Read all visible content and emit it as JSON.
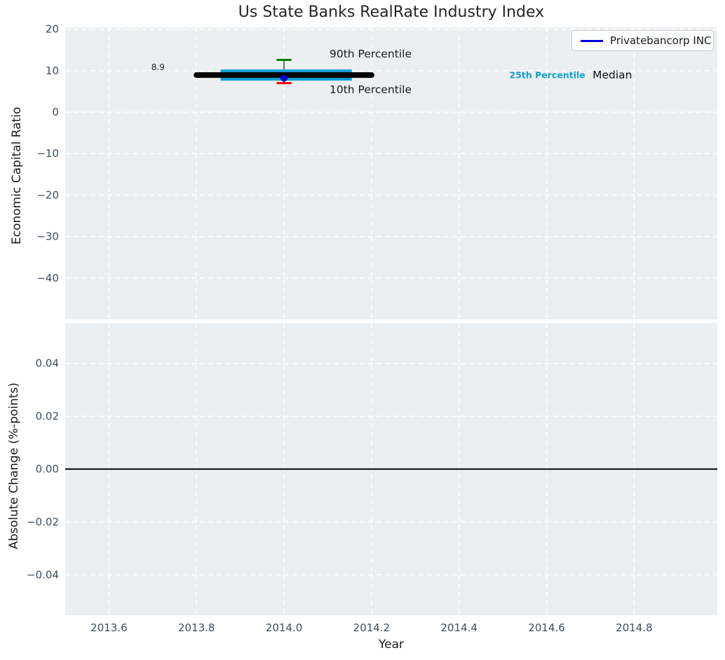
{
  "figure": {
    "title": "Us State Banks RealRate Industry Index",
    "legend": {
      "label": "Privatebancorp INC",
      "line_color": "#0000dd"
    }
  },
  "chart_data": [
    {
      "type": "line",
      "title": "Us State Banks RealRate Industry Index",
      "xlabel": "",
      "ylabel": "Economic Capital Ratio",
      "background": "#eceff1",
      "grid": "white-dashed",
      "xlim": [
        2013.5,
        2014.99
      ],
      "ylim": [
        -50,
        20.45
      ],
      "xticks": [
        2013.6,
        2013.8,
        2014.0,
        2014.2,
        2014.4,
        2014.6,
        2014.8
      ],
      "xtick_labels": [
        "2013.6",
        "2013.8",
        "2014.0",
        "2014.2",
        "2014.4",
        "2014.6",
        "2014.8"
      ],
      "yticks": [
        20,
        10,
        0,
        -10,
        -20,
        -30,
        -40
      ],
      "ytick_labels": [
        "20",
        "10",
        "0",
        "−10",
        "−20",
        "−30",
        "−40"
      ],
      "legend_position": "upper right",
      "series": [
        {
          "name": "whisker-stem",
          "type": "stem",
          "x": 2014.0,
          "y1": 7.0,
          "y2": 12.6,
          "color": "#4a4a4a",
          "linewidth": 1.5
        },
        {
          "name": "25th-75th percentile band",
          "type": "band",
          "x": [
            2013.855,
            2014.155
          ],
          "y_low": 7.6,
          "y_high": 10.3,
          "color": "#0f9fd4"
        },
        {
          "name": "Median",
          "type": "line",
          "x": [
            2013.8,
            2014.2
          ],
          "y": [
            8.95,
            8.95
          ],
          "color": "#000000",
          "linewidth": 8
        },
        {
          "name": "90th Percentile",
          "type": "whisker_cap",
          "x": 2014.0,
          "y": 12.6,
          "cap_halfwidth_years": 0.017,
          "color": "#008000",
          "linewidth": 3
        },
        {
          "name": "10th Percentile",
          "type": "whisker_cap",
          "x": 2014.0,
          "y": 7.0,
          "cap_halfwidth_years": 0.017,
          "color": "#f00000",
          "linewidth": 3
        },
        {
          "name": "Privatebancorp INC",
          "type": "scatter",
          "x": [
            2014.0
          ],
          "y": [
            8.2
          ],
          "color": "#0000cc",
          "marker": "circle",
          "marker_radius": 5
        }
      ],
      "annotations": [
        {
          "id": "value-label",
          "text": "8.9",
          "x": 2013.712,
          "y": 10.8,
          "color": "#262626",
          "font_size": 12,
          "anchor": "middle",
          "bold": false
        },
        {
          "id": "p90-label",
          "text": "90th Percentile",
          "x": 2014.104,
          "y": 14.0,
          "color": "#1a1a1a",
          "font_size": 15.5,
          "anchor": "start",
          "bold": false
        },
        {
          "id": "p10-label",
          "text": "10th Percentile",
          "x": 2014.104,
          "y": 5.4,
          "color": "#1a1a1a",
          "font_size": 15.5,
          "anchor": "start",
          "bold": false
        },
        {
          "id": "p25-label",
          "text": "25th Percentile",
          "x": 2014.515,
          "y": 9.0,
          "color": "#0f9fd4",
          "font_size": 12.5,
          "anchor": "start",
          "bold": true
        },
        {
          "id": "median-label",
          "text": "Median",
          "x": 2014.705,
          "y": 8.95,
          "color": "#111111",
          "font_size": 15.5,
          "anchor": "start",
          "bold": false
        }
      ]
    },
    {
      "type": "line",
      "xlabel": "Year",
      "ylabel": "Absolute Change (%-points)",
      "background": "#eceff1",
      "grid": "white-dashed",
      "xlim": [
        2013.5,
        2014.99
      ],
      "ylim": [
        -0.0553,
        0.0553
      ],
      "xticks": [
        2013.6,
        2013.8,
        2014.0,
        2014.2,
        2014.4,
        2014.6,
        2014.8
      ],
      "xtick_labels": [
        "2013.6",
        "2013.8",
        "2014.0",
        "2014.2",
        "2014.4",
        "2014.6",
        "2014.8"
      ],
      "yticks": [
        0.04,
        0.02,
        0.0,
        -0.02,
        -0.04
      ],
      "ytick_labels": [
        "0.04",
        "0.02",
        "0.00",
        "−0.02",
        "−0.04"
      ],
      "zero_line": {
        "y": 0.0,
        "color": "#000000",
        "linewidth": 2
      },
      "series": [],
      "annotations": []
    }
  ],
  "style": {
    "tick_label_color": "#3d4d60",
    "grid_color": "#ffffff",
    "tick_font_size": 15
  }
}
